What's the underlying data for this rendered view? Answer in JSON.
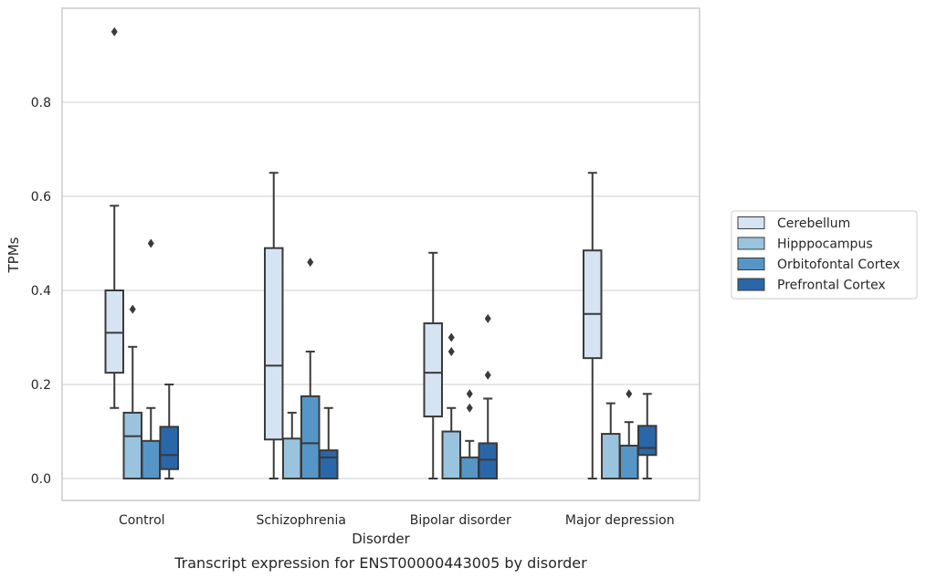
{
  "chart_data": {
    "type": "box",
    "title": "",
    "caption": "Transcript expression for ENST00000443005 by disorder",
    "xlabel": "Disorder",
    "ylabel": "TPMs",
    "ylim": [
      -0.045,
      0.99
    ],
    "yticks": [
      0.0,
      0.2,
      0.4,
      0.6,
      0.8
    ],
    "ytick_labels": [
      "0.0",
      "0.2",
      "0.4",
      "0.6",
      "0.8"
    ],
    "grid": "horizontal",
    "legend_position": "right",
    "categories": [
      "Control",
      "Schizophrenia",
      "Bipolar disorder",
      "Major depression"
    ],
    "series": [
      {
        "name": "Cerebellum",
        "color": "#d5e3f2",
        "boxes": [
          {
            "whisker_low": 0.15,
            "q1": 0.225,
            "median": 0.31,
            "q3": 0.4,
            "whisker_high": 0.58,
            "outliers": [
              0.95
            ]
          },
          {
            "whisker_low": 0.0,
            "q1": 0.083,
            "median": 0.24,
            "q3": 0.49,
            "whisker_high": 0.65,
            "outliers": []
          },
          {
            "whisker_low": 0.0,
            "q1": 0.132,
            "median": 0.225,
            "q3": 0.33,
            "whisker_high": 0.48,
            "outliers": []
          },
          {
            "whisker_low": 0.0,
            "q1": 0.256,
            "median": 0.35,
            "q3": 0.485,
            "whisker_high": 0.65,
            "outliers": []
          }
        ]
      },
      {
        "name": "Hipppocampus",
        "color": "#9ac4de",
        "boxes": [
          {
            "whisker_low": 0.0,
            "q1": 0.0,
            "median": 0.09,
            "q3": 0.14,
            "whisker_high": 0.28,
            "outliers": [
              0.36
            ]
          },
          {
            "whisker_low": 0.0,
            "q1": 0.0,
            "median": 0.0,
            "q3": 0.085,
            "whisker_high": 0.14,
            "outliers": []
          },
          {
            "whisker_low": 0.0,
            "q1": 0.0,
            "median": 0.0,
            "q3": 0.1,
            "whisker_high": 0.15,
            "outliers": [
              0.27,
              0.3
            ]
          },
          {
            "whisker_low": 0.0,
            "q1": 0.0,
            "median": 0.0,
            "q3": 0.095,
            "whisker_high": 0.16,
            "outliers": []
          }
        ]
      },
      {
        "name": "Orbitofontal Cortex",
        "color": "#5596c7",
        "boxes": [
          {
            "whisker_low": 0.0,
            "q1": 0.0,
            "median": 0.0,
            "q3": 0.08,
            "whisker_high": 0.15,
            "outliers": [
              0.5
            ]
          },
          {
            "whisker_low": 0.0,
            "q1": 0.0,
            "median": 0.075,
            "q3": 0.175,
            "whisker_high": 0.27,
            "outliers": [
              0.46
            ]
          },
          {
            "whisker_low": 0.0,
            "q1": 0.0,
            "median": 0.0,
            "q3": 0.045,
            "whisker_high": 0.08,
            "outliers": [
              0.15,
              0.18
            ]
          },
          {
            "whisker_low": 0.0,
            "q1": 0.0,
            "median": 0.0,
            "q3": 0.07,
            "whisker_high": 0.12,
            "outliers": [
              0.18
            ]
          }
        ]
      },
      {
        "name": "Prefrontal Cortex",
        "color": "#2a67a8",
        "boxes": [
          {
            "whisker_low": 0.0,
            "q1": 0.02,
            "median": 0.05,
            "q3": 0.11,
            "whisker_high": 0.2,
            "outliers": []
          },
          {
            "whisker_low": 0.0,
            "q1": 0.0,
            "median": 0.045,
            "q3": 0.06,
            "whisker_high": 0.15,
            "outliers": []
          },
          {
            "whisker_low": 0.0,
            "q1": 0.0,
            "median": 0.04,
            "q3": 0.075,
            "whisker_high": 0.17,
            "outliers": [
              0.22,
              0.34
            ]
          },
          {
            "whisker_low": 0.0,
            "q1": 0.05,
            "median": 0.065,
            "q3": 0.112,
            "whisker_high": 0.18,
            "outliers": []
          }
        ]
      }
    ]
  }
}
